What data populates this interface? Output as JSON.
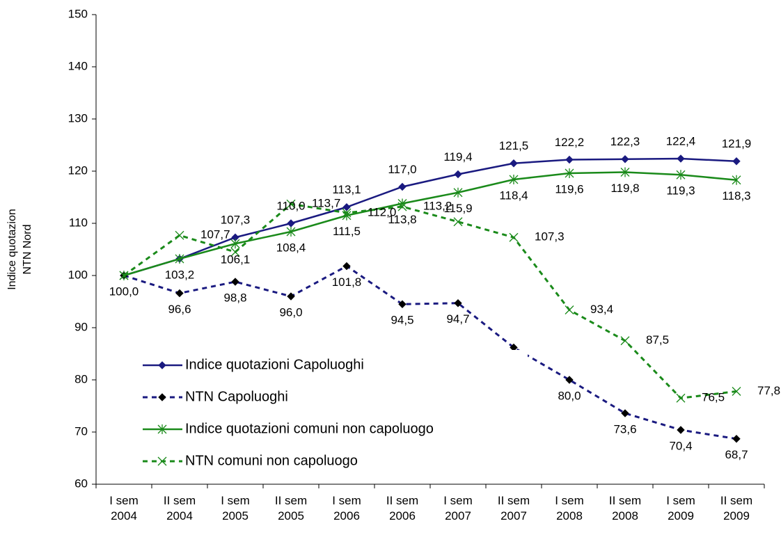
{
  "chart_data": {
    "type": "line",
    "ylabel": [
      "Indice quotazion",
      "NTN Nord"
    ],
    "categories": [
      [
        "I sem",
        "2004"
      ],
      [
        "II sem",
        "2004"
      ],
      [
        "I sem",
        "2005"
      ],
      [
        "II sem",
        "2005"
      ],
      [
        "I sem",
        "2006"
      ],
      [
        "II sem",
        "2006"
      ],
      [
        "I sem",
        "2007"
      ],
      [
        "II sem",
        "2007"
      ],
      [
        "I sem",
        "2008"
      ],
      [
        "II sem",
        "2008"
      ],
      [
        "I sem",
        "2009"
      ],
      [
        "II sem",
        "2009"
      ]
    ],
    "ylim": [
      60,
      150
    ],
    "yticks": [
      60,
      70,
      80,
      90,
      100,
      110,
      120,
      130,
      140,
      150
    ],
    "series": [
      {
        "name": "Indice quotazioni Capoluoghi",
        "color": "#1a1a80",
        "marker": "diamond",
        "marker_color": "#1a1a80",
        "dash": false,
        "values": [
          100.0,
          103.2,
          107.3,
          110.0,
          113.1,
          117.0,
          119.4,
          121.5,
          122.2,
          122.3,
          122.4,
          121.9
        ],
        "value_labels": [
          null,
          null,
          "107,3",
          "110,0",
          "113,1",
          "117,0",
          "119,4",
          "121,5",
          "122,2",
          "122,3",
          "122,4",
          "121,9"
        ]
      },
      {
        "name": "NTN Capoluoghi",
        "color": "#1a1a80",
        "marker": "diamond",
        "marker_color": "#000000",
        "dash": true,
        "values": [
          100.0,
          96.6,
          98.8,
          96.0,
          101.8,
          94.5,
          94.7,
          86.2,
          80.0,
          73.6,
          70.4,
          68.7
        ],
        "value_labels": [
          "100,0",
          "96,6",
          "98,8",
          "96,0",
          "101,8",
          "94,5",
          "94,7",
          "86,2",
          "80,0",
          "73,6",
          "70,4",
          "68,7"
        ]
      },
      {
        "name": "Indice quotazioni comuni non capoluogo",
        "color": "#1a8a1a",
        "marker": "asterisk",
        "marker_color": "#1a8a1a",
        "dash": false,
        "values": [
          100.0,
          103.2,
          106.1,
          108.4,
          111.5,
          113.8,
          115.9,
          118.4,
          119.6,
          119.8,
          119.3,
          118.3
        ],
        "value_labels": [
          null,
          "103,2",
          "106,1",
          "108,4",
          "111,5",
          "113,8",
          "115,9",
          "118,4",
          "119,6",
          "119,8",
          "119,3",
          "118,3"
        ]
      },
      {
        "name": "NTN comuni non capoluogo",
        "color": "#1a8a1a",
        "marker": "x",
        "marker_color": "#1a8a1a",
        "dash": true,
        "values": [
          100.0,
          107.7,
          104.5,
          113.7,
          112.0,
          113.2,
          110.3,
          107.3,
          93.4,
          87.5,
          76.5,
          77.8
        ],
        "value_labels": [
          null,
          "107,7",
          null,
          "113,7",
          "112,0",
          "113,2",
          null,
          "107,3",
          "93,4",
          "87,5",
          "76,5",
          "77,8"
        ]
      }
    ]
  }
}
